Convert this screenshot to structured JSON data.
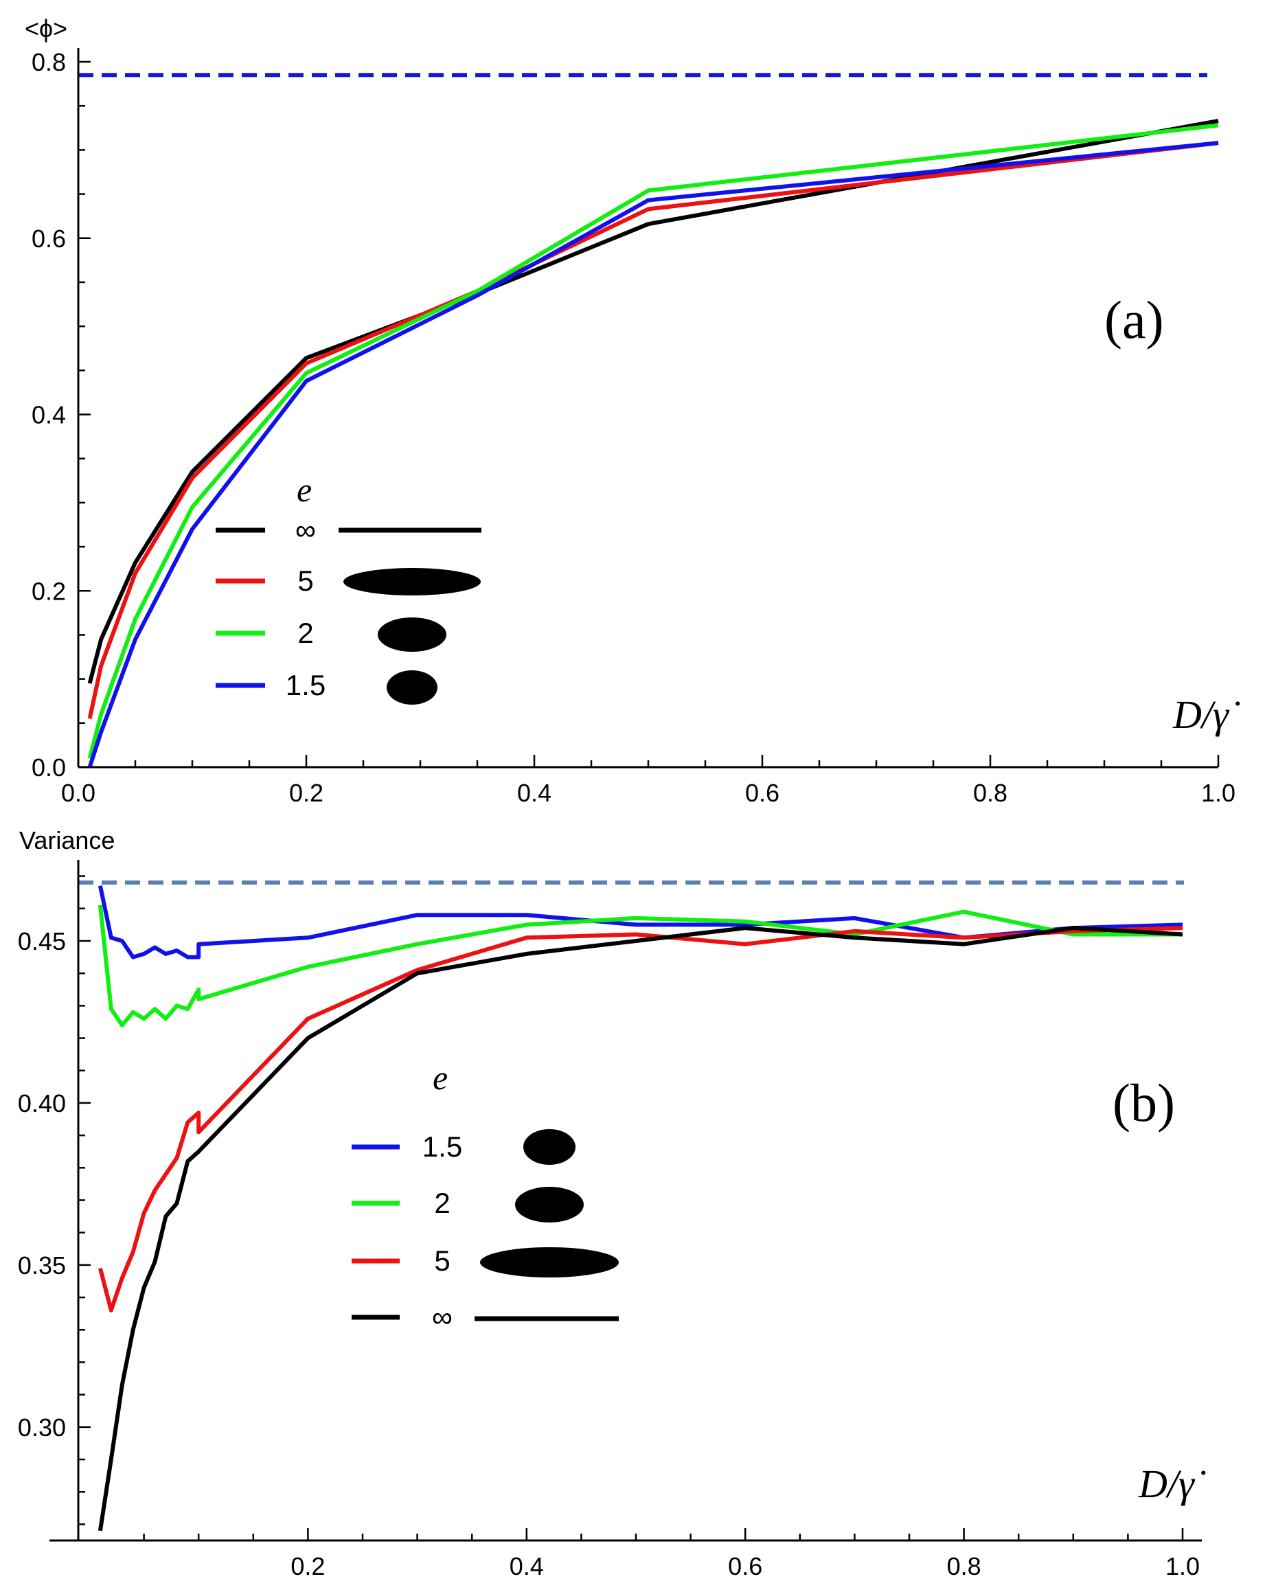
{
  "chart_data": [
    {
      "type": "line",
      "panel_label": "(a)",
      "ylabel": "<ϕ>",
      "xlabel": "D/γ̇",
      "xlim": [
        0,
        1.0
      ],
      "ylim": [
        0,
        0.8
      ],
      "xticks": [
        "0.0",
        "0.2",
        "0.4",
        "0.6",
        "0.8",
        "1.0"
      ],
      "yticks": [
        "0.0",
        "0.2",
        "0.4",
        "0.6",
        "0.8"
      ],
      "reference_line": {
        "y": 0.785,
        "color": "#1515e0",
        "style": "dashed"
      },
      "legend": {
        "title": "e",
        "entries": [
          {
            "label": "∞",
            "color": "#000000",
            "shape": "line"
          },
          {
            "label": "5",
            "color": "#ee1111",
            "shape": "ellipse-5"
          },
          {
            "label": "2",
            "color": "#11ee11",
            "shape": "ellipse-2"
          },
          {
            "label": "1.5",
            "color": "#1111ee",
            "shape": "ellipse-1.5"
          }
        ]
      },
      "series": [
        {
          "name": "∞",
          "color": "#000000",
          "x": [
            0.01,
            0.02,
            0.05,
            0.1,
            0.2,
            0.35,
            0.5,
            1.0
          ],
          "y": [
            0.095,
            0.145,
            0.232,
            0.335,
            0.464,
            0.537,
            0.616,
            0.733
          ]
        },
        {
          "name": "5",
          "color": "#ee1111",
          "x": [
            0.01,
            0.02,
            0.05,
            0.1,
            0.2,
            0.35,
            0.5,
            1.0
          ],
          "y": [
            0.055,
            0.115,
            0.22,
            0.328,
            0.458,
            0.54,
            0.633,
            0.708
          ]
        },
        {
          "name": "2",
          "color": "#11ee11",
          "x": [
            0.01,
            0.02,
            0.05,
            0.1,
            0.2,
            0.35,
            0.5,
            1.0
          ],
          "y": [
            0.01,
            0.06,
            0.168,
            0.295,
            0.447,
            0.54,
            0.654,
            0.728
          ]
        },
        {
          "name": "1.5",
          "color": "#1111ee",
          "x": [
            0.01,
            0.02,
            0.05,
            0.1,
            0.2,
            0.35,
            0.5,
            1.0
          ],
          "y": [
            0.0,
            0.04,
            0.145,
            0.27,
            0.438,
            0.535,
            0.643,
            0.708
          ]
        }
      ]
    },
    {
      "type": "line",
      "panel_label": "(b)",
      "ylabel": "Variance",
      "xlabel": "D/γ̇",
      "xlim": [
        0,
        1.0
      ],
      "ylim": [
        0.265,
        0.475
      ],
      "xticks": [
        "0.2",
        "0.4",
        "0.6",
        "0.8",
        "1.0"
      ],
      "yticks": [
        "0.30",
        "0.35",
        "0.40",
        "0.45"
      ],
      "reference_line": {
        "y": 0.468,
        "color": "#5b7fb0",
        "style": "dashed"
      },
      "legend": {
        "title": "e",
        "entries": [
          {
            "label": "1.5",
            "color": "#1111ee",
            "shape": "ellipse-1.5"
          },
          {
            "label": "2",
            "color": "#11ee11",
            "shape": "ellipse-2"
          },
          {
            "label": "5",
            "color": "#ee1111",
            "shape": "ellipse-5"
          },
          {
            "label": "∞",
            "color": "#000000",
            "shape": "line"
          }
        ]
      },
      "series": [
        {
          "name": "1.5",
          "color": "#1111ee",
          "x": [
            0.01,
            0.02,
            0.03,
            0.04,
            0.05,
            0.06,
            0.07,
            0.08,
            0.09,
            0.1,
            0.1,
            0.2,
            0.3,
            0.4,
            0.5,
            0.6,
            0.7,
            0.8,
            0.9,
            1.0
          ],
          "y": [
            0.467,
            0.451,
            0.45,
            0.445,
            0.446,
            0.448,
            0.446,
            0.447,
            0.445,
            0.445,
            0.449,
            0.451,
            0.458,
            0.458,
            0.455,
            0.455,
            0.457,
            0.451,
            0.454,
            0.455
          ]
        },
        {
          "name": "2",
          "color": "#11ee11",
          "x": [
            0.01,
            0.02,
            0.03,
            0.04,
            0.05,
            0.06,
            0.07,
            0.08,
            0.09,
            0.1,
            0.1,
            0.2,
            0.3,
            0.4,
            0.5,
            0.6,
            0.7,
            0.8,
            0.9,
            1.0
          ],
          "y": [
            0.461,
            0.429,
            0.424,
            0.428,
            0.426,
            0.429,
            0.426,
            0.43,
            0.429,
            0.435,
            0.432,
            0.442,
            0.449,
            0.455,
            0.457,
            0.456,
            0.452,
            0.459,
            0.452,
            0.452
          ]
        },
        {
          "name": "5",
          "color": "#ee1111",
          "x": [
            0.01,
            0.02,
            0.03,
            0.04,
            0.05,
            0.06,
            0.07,
            0.08,
            0.09,
            0.1,
            0.1,
            0.2,
            0.3,
            0.4,
            0.5,
            0.6,
            0.7,
            0.8,
            0.9,
            1.0
          ],
          "y": [
            0.349,
            0.336,
            0.346,
            0.354,
            0.366,
            0.373,
            0.378,
            0.383,
            0.394,
            0.397,
            0.391,
            0.426,
            0.441,
            0.451,
            0.452,
            0.449,
            0.453,
            0.451,
            0.453,
            0.454
          ]
        },
        {
          "name": "∞",
          "color": "#000000",
          "x": [
            0.01,
            0.02,
            0.03,
            0.04,
            0.05,
            0.06,
            0.07,
            0.08,
            0.09,
            0.1,
            0.2,
            0.3,
            0.4,
            0.5,
            0.6,
            0.7,
            0.8,
            0.9,
            1.0
          ],
          "y": [
            0.268,
            0.29,
            0.313,
            0.33,
            0.343,
            0.351,
            0.365,
            0.369,
            0.382,
            0.385,
            0.42,
            0.44,
            0.446,
            0.45,
            0.454,
            0.451,
            0.449,
            0.454,
            0.452
          ]
        }
      ]
    }
  ]
}
